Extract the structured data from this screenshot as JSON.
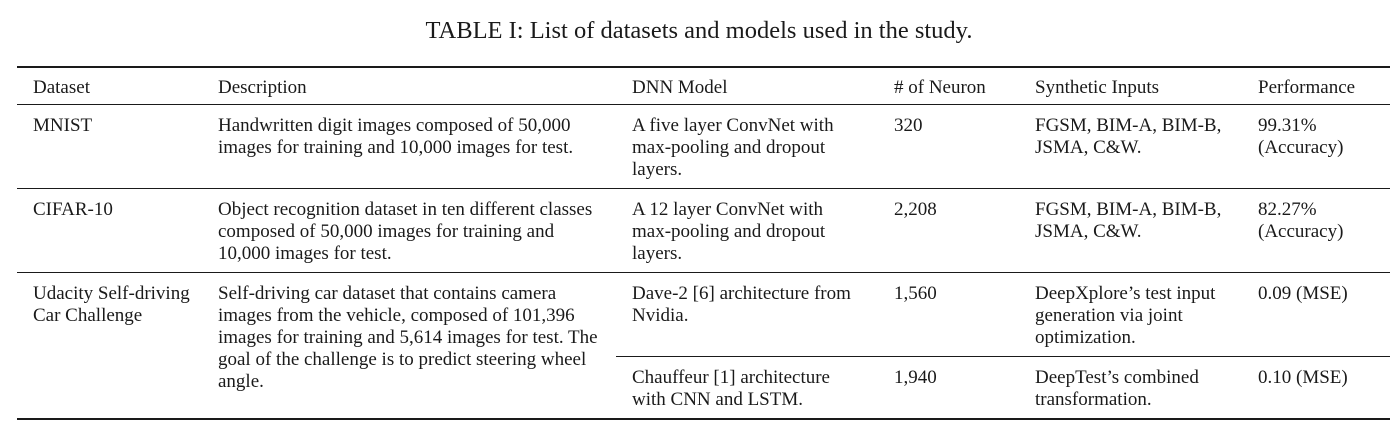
{
  "caption": "TABLE I: List of datasets and models used in the study.",
  "table": {
    "headers": [
      "Dataset",
      "Description",
      "DNN Model",
      "# of Neuron",
      "Synthetic Inputs",
      "Performance"
    ],
    "rows": [
      {
        "dataset": "MNIST",
        "description": "Handwritten digit images composed of 50,000 images for training and 10,000 images for test.",
        "model": "A five layer ConvNet with max-pooling and dropout layers.",
        "neurons": "320",
        "synthetic": "FGSM, BIM-A, BIM-B, JSMA, C&W.",
        "performance": "99.31% (Accuracy)"
      },
      {
        "dataset": "CIFAR-10",
        "description": "Object recognition dataset in ten different classes composed of 50,000 images for training and 10,000 images for test.",
        "model": "A 12 layer ConvNet with max-pooling and dropout layers.",
        "neurons": "2,208",
        "synthetic": "FGSM, BIM-A, BIM-B, JSMA, C&W.",
        "performance": "82.27% (Accuracy)"
      },
      {
        "dataset": "Udacity Self-driving Car Challenge",
        "description": "Self-driving car dataset that contains camera images from the vehicle, composed of 101,396 images for training and 5,614 images for test. The goal of the challenge is to predict steering wheel angle.",
        "models": [
          {
            "model": "Dave-2 [6] architecture from Nvidia.",
            "neurons": "1,560",
            "synthetic": "DeepXplore’s test input generation via joint optimization.",
            "performance": "0.09 (MSE)"
          },
          {
            "model": "Chauffeur [1] architecture with CNN and LSTM.",
            "neurons": "1,940",
            "synthetic": "DeepTest’s combined transformation.",
            "performance": "0.10 (MSE)"
          }
        ]
      }
    ]
  }
}
